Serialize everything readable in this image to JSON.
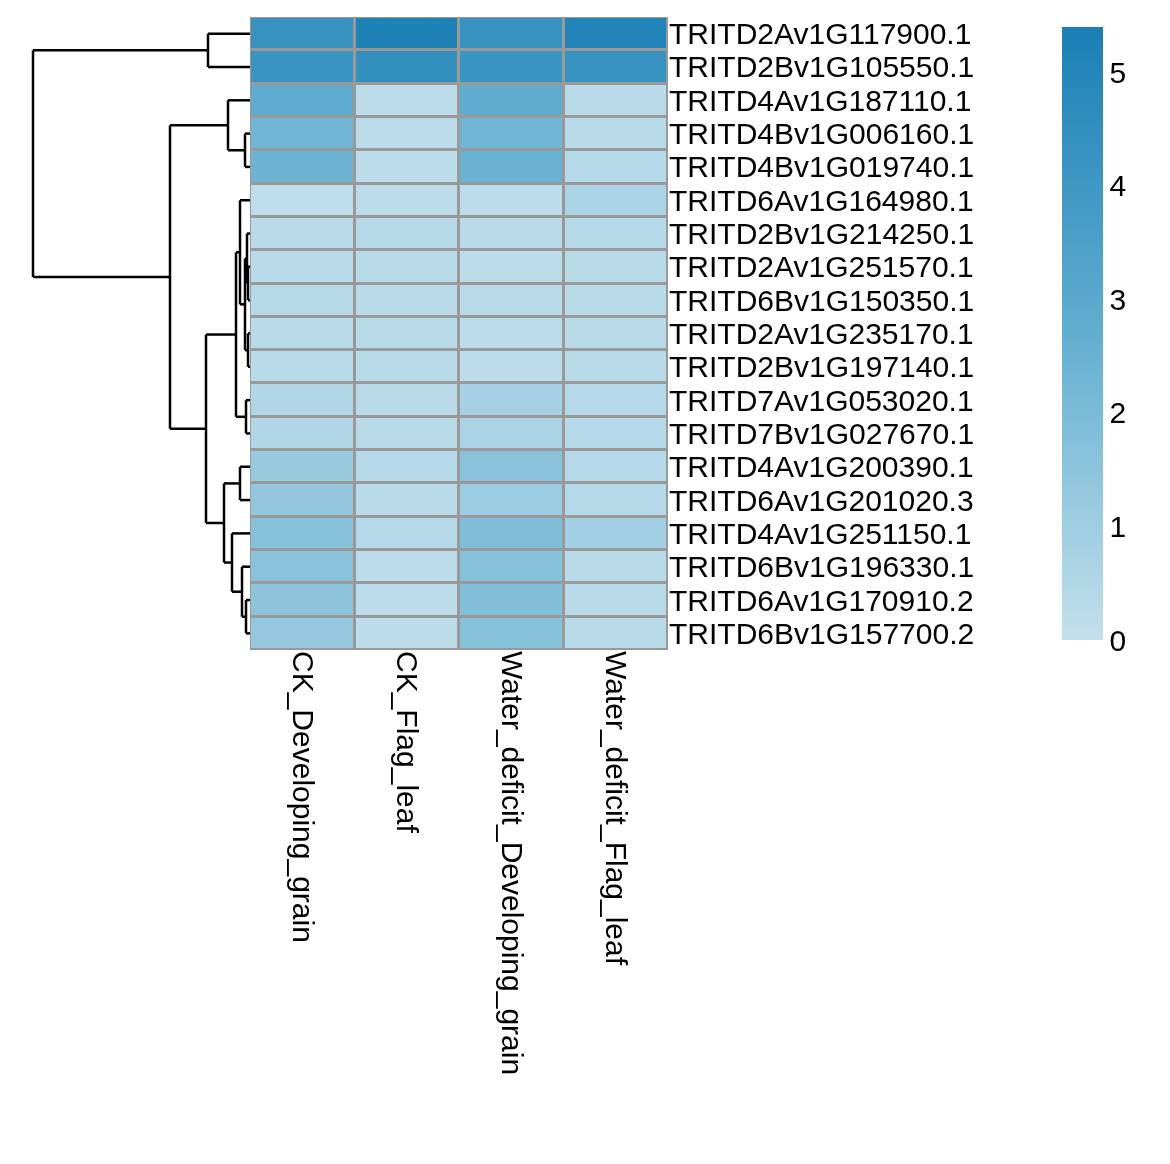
{
  "chart_data": {
    "type": "heatmap",
    "categories": [
      "CK_Developing_grain",
      "CK_Flag_leaf",
      "Water_deficit_Developing_grain",
      "Water_deficit_Flag_leaf"
    ],
    "y_categories": [
      "TRITD2Av1G117900.1",
      "TRITD2Bv1G105550.1",
      "TRITD4Av1G187110.1",
      "TRITD4Bv1G006160.1",
      "TRITD4Bv1G019740.1",
      "TRITD6Av1G164980.1",
      "TRITD2Bv1G214250.1",
      "TRITD2Av1G251570.1",
      "TRITD6Bv1G150350.1",
      "TRITD2Av1G235170.1",
      "TRITD2Bv1G197140.1",
      "TRITD7Av1G053020.1",
      "TRITD7Bv1G027670.1",
      "TRITD4Av1G200390.1",
      "TRITD6Av1G201020.3",
      "TRITD4Av1G251150.1",
      "TRITD6Bv1G196330.1",
      "TRITD6Av1G170910.2",
      "TRITD6Bv1G157700.2"
    ],
    "cells": [
      [
        4.3,
        5.2,
        4.3,
        5.1
      ],
      [
        4.2,
        4.5,
        4.2,
        4.3
      ],
      [
        2.9,
        0.2,
        2.8,
        0.3
      ],
      [
        2.3,
        0.2,
        2.3,
        0.3
      ],
      [
        2.4,
        0.2,
        2.5,
        0.4
      ],
      [
        0.1,
        0.2,
        0.2,
        0.7
      ],
      [
        0.3,
        0.4,
        0.3,
        0.4
      ],
      [
        0.3,
        0.3,
        0.2,
        0.3
      ],
      [
        0.4,
        0.3,
        0.3,
        0.3
      ],
      [
        0.3,
        0.3,
        0.2,
        0.3
      ],
      [
        0.3,
        0.3,
        0.2,
        0.3
      ],
      [
        0.5,
        0.3,
        0.8,
        0.4
      ],
      [
        0.5,
        0.3,
        0.7,
        0.4
      ],
      [
        1.2,
        0.4,
        1.6,
        0.4
      ],
      [
        1.4,
        0.3,
        1.1,
        0.4
      ],
      [
        1.7,
        0.4,
        1.9,
        0.9
      ],
      [
        1.6,
        0.2,
        1.7,
        0.3
      ],
      [
        1.5,
        0.2,
        1.8,
        0.3
      ],
      [
        1.3,
        0.2,
        1.7,
        0.3
      ]
    ],
    "clim": [
      0,
      5.4
    ],
    "cticks": [
      0,
      1,
      2,
      3,
      4,
      5
    ]
  }
}
